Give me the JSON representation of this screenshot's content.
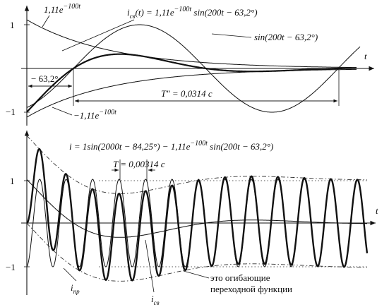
{
  "top": {
    "ytick_pos": "1",
    "ytick_neg": "−1",
    "axis_t": "t",
    "env_pos": {
      "base": "1,11e",
      "exp": "−100t"
    },
    "free_formula": {
      "i": "i",
      "sub": "св",
      "mid": "(t) = 1,11e",
      "exp": "−100t",
      "tail": " sin(200t − 63,2°)"
    },
    "sine_label": "sin(200t − 63,2°)",
    "phase_label": "− 63,2°",
    "period_label": "T″ = 0,0314 с",
    "env_neg": {
      "base": "−1,11e",
      "exp": "−100t"
    }
  },
  "bottom": {
    "ytick_pos": "1",
    "ytick_neg": "−1",
    "axis_t": "t",
    "formula": {
      "head": "i = 1sin(2000t − 84,25°) − 1,11e",
      "exp": "−100t",
      "tail": " sin(200t − 63,2°)"
    },
    "period_label": "T = 0,00314 с",
    "forced_label": {
      "i": "i",
      "sub": "пр"
    },
    "free_label": {
      "i": "i",
      "sub": "св"
    },
    "envelope_note": [
      "это огибающие",
      "переходной функции"
    ]
  }
}
